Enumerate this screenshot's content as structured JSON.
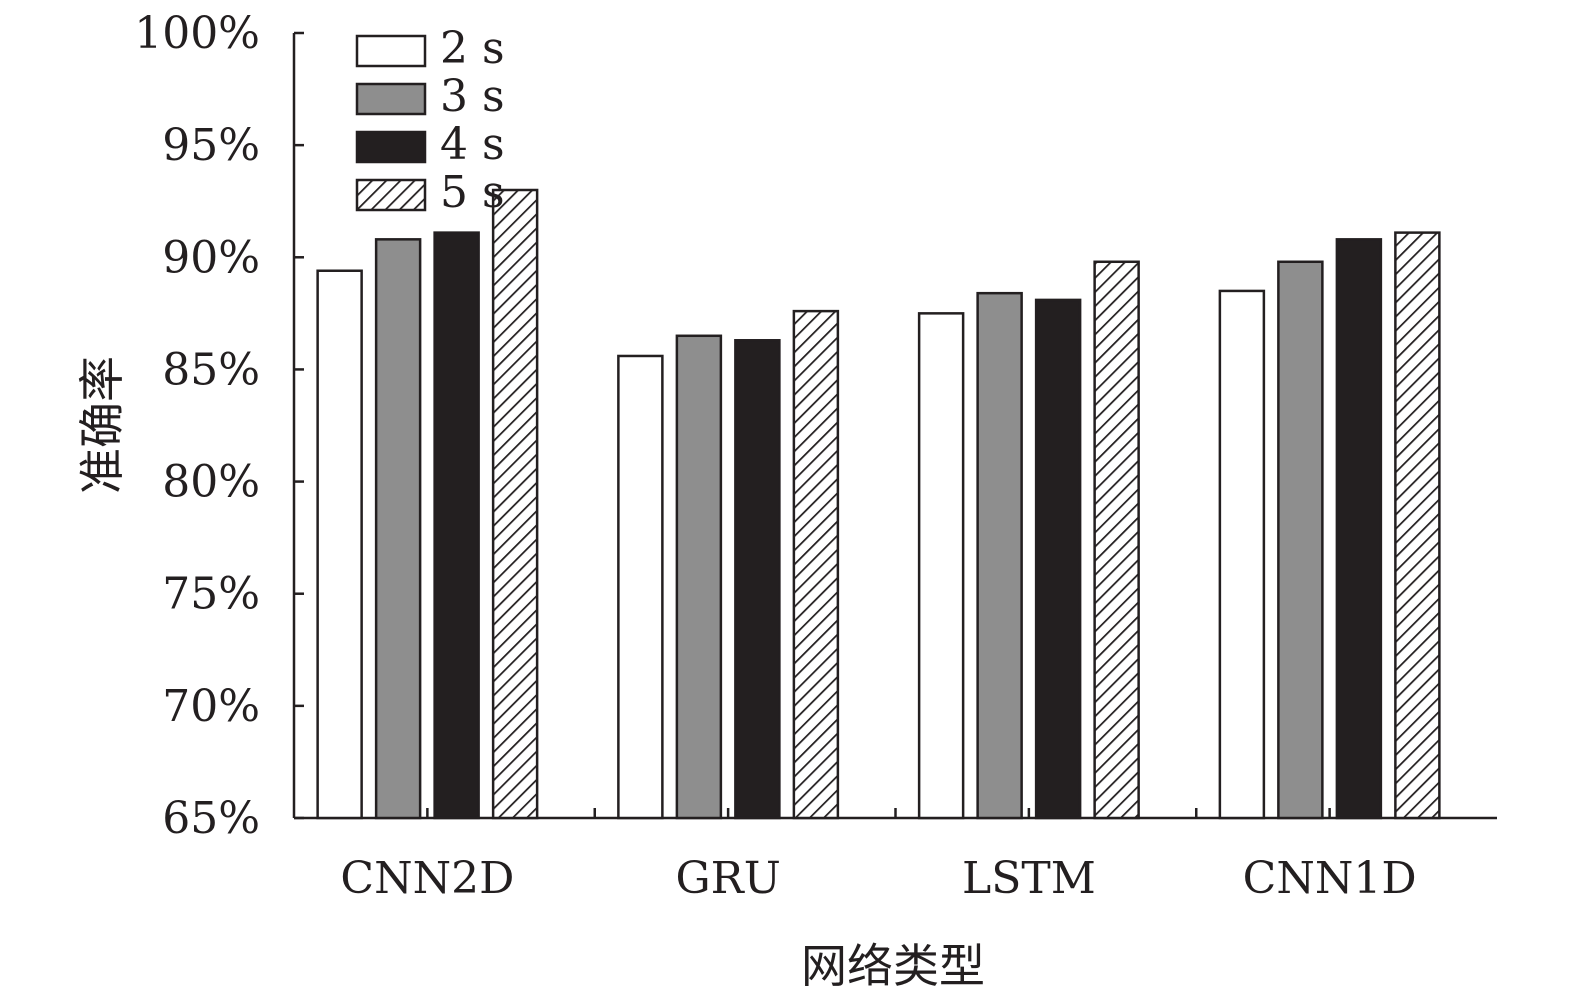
{
  "chart_data": {
    "type": "bar",
    "title": "",
    "xlabel": "网络类型",
    "ylabel": "准确率",
    "categories": [
      "CNN2D",
      "GRU",
      "LSTM",
      "CNN1D"
    ],
    "ylim": [
      0.65,
      1.0
    ],
    "yticks": [
      "65%",
      "70%",
      "75%",
      "80%",
      "85%",
      "90%",
      "95%",
      "100%"
    ],
    "ytick_values": [
      0.65,
      0.7,
      0.75,
      0.8,
      0.85,
      0.9,
      0.95,
      1.0
    ],
    "grid": false,
    "legend_position": "top-left",
    "series": [
      {
        "name": "2 s",
        "fill": "white",
        "values": [
          0.894,
          0.856,
          0.875,
          0.885
        ]
      },
      {
        "name": "3 s",
        "fill": "gray",
        "values": [
          0.908,
          0.865,
          0.884,
          0.898
        ]
      },
      {
        "name": "4 s",
        "fill": "black",
        "values": [
          0.911,
          0.863,
          0.881,
          0.908
        ]
      },
      {
        "name": "5 s",
        "fill": "hatched",
        "values": [
          0.93,
          0.876,
          0.898,
          0.911
        ]
      }
    ],
    "colors": {
      "gray": "#8e8e8e",
      "black": "#231f20",
      "white": "#ffffff",
      "stroke": "#231f20"
    }
  }
}
